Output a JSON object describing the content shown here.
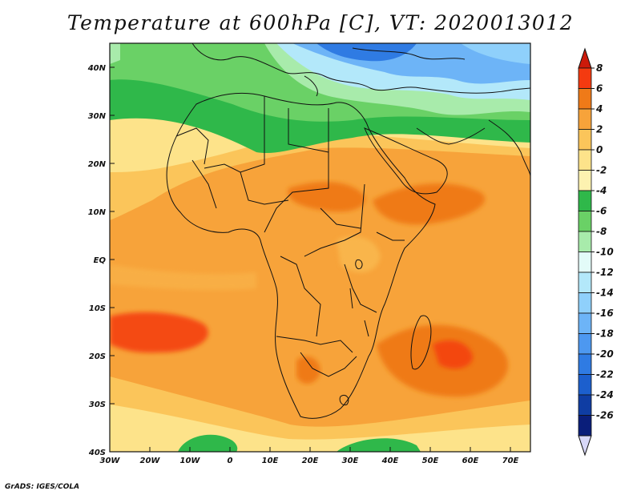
{
  "title": "Temperature at 600hPa [C], VT: 2020013012",
  "credit": "GrADS: IGES/COLA",
  "map": {
    "lon_range": [
      -30,
      75
    ],
    "lat_range": [
      -40,
      45
    ],
    "lon_ticks": [
      {
        "value": -30,
        "label": "30W"
      },
      {
        "value": -20,
        "label": "20W"
      },
      {
        "value": -10,
        "label": "10W"
      },
      {
        "value": 0,
        "label": "0"
      },
      {
        "value": 10,
        "label": "10E"
      },
      {
        "value": 20,
        "label": "20E"
      },
      {
        "value": 30,
        "label": "30E"
      },
      {
        "value": 40,
        "label": "40E"
      },
      {
        "value": 50,
        "label": "50E"
      },
      {
        "value": 60,
        "label": "60E"
      },
      {
        "value": 70,
        "label": "70E"
      }
    ],
    "lat_ticks": [
      {
        "value": 40,
        "label": "40N"
      },
      {
        "value": 30,
        "label": "30N"
      },
      {
        "value": 20,
        "label": "20N"
      },
      {
        "value": 10,
        "label": "10N"
      },
      {
        "value": 0,
        "label": "EQ"
      },
      {
        "value": -10,
        "label": "10S"
      },
      {
        "value": -20,
        "label": "20S"
      },
      {
        "value": -30,
        "label": "30S"
      },
      {
        "value": -40,
        "label": "40S"
      }
    ]
  },
  "colorbar": {
    "levels": [
      "8",
      "6",
      "4",
      "2",
      "0",
      "-2",
      "-4",
      "-6",
      "-8",
      "-10",
      "-12",
      "-14",
      "-16",
      "-18",
      "-20",
      "-22",
      "-24",
      "-26"
    ],
    "colors": [
      "#f43a10",
      "#ef7a18",
      "#f7a33a",
      "#fbc55a",
      "#fde38a",
      "#fdf2b0",
      "#2fb84a",
      "#6ad166",
      "#a8ebab",
      "#e3fbf8",
      "#b3e8fa",
      "#8fd0fb",
      "#6db4f7",
      "#4d98f0",
      "#2f7be3",
      "#1c5fcd",
      "#0f3da3",
      "#0a1e7a"
    ],
    "top_triangle_color": "#cc1a0a",
    "bottom_triangle_color": "#d8d8f8"
  }
}
